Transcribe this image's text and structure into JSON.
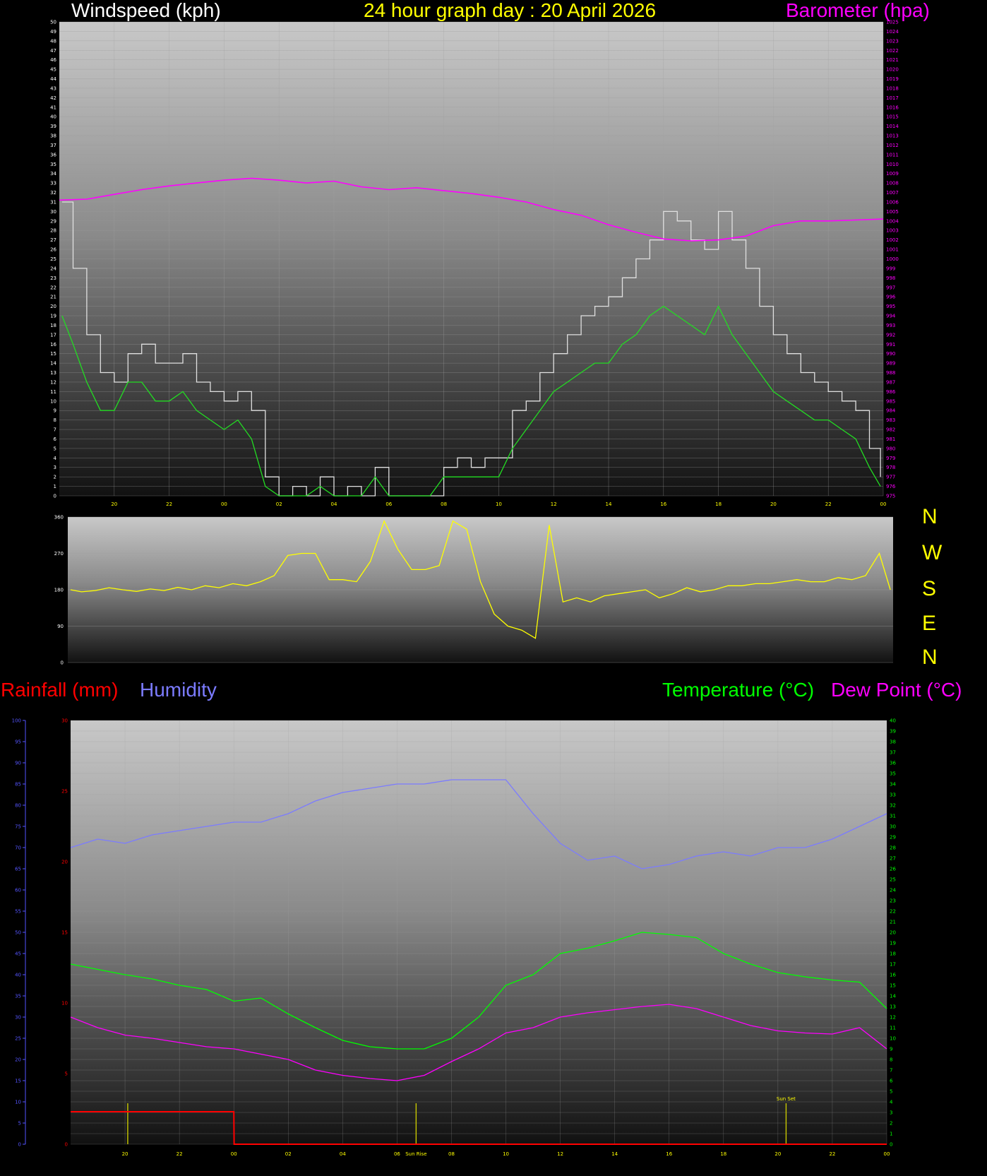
{
  "header": {
    "windspeed_label": "Windspeed (kph)",
    "title": "24 hour graph day : 20 April 2026",
    "barometer_label": "Barometer (hpa)"
  },
  "colors": {
    "windspeed": "#ffffff",
    "title": "#ffff00",
    "barometer": "#ff00ff",
    "gust": "#e0e0e0",
    "avgwind": "#22dd22",
    "direction": "#ffff00",
    "rainfall": "#ff0000",
    "humidity": "#7b7bff",
    "temperature": "#00ff00",
    "dewpoint": "#ff00ff",
    "sun": "#c8c800"
  },
  "direction_labels": [
    "N",
    "W",
    "S",
    "E",
    "N"
  ],
  "lower_header": {
    "rainfall_label": "Rainfall (mm)",
    "humidity_label": "Humidity",
    "temperature_label": "Temperature (°C)",
    "dewpoint_label": "Dew Point (°C)"
  },
  "annotations": {
    "sun_rise": "Sun Rise",
    "sun_set": "Sun Set"
  },
  "chart_data": [
    {
      "type": "line",
      "name": "wind-and-barometer",
      "x_unit": "hour",
      "x_range": [
        18,
        48
      ],
      "x_ticks": [
        "20",
        "22",
        "00",
        "02",
        "04",
        "06",
        "08",
        "10",
        "12",
        "14",
        "16",
        "18",
        "20",
        "22",
        "00"
      ],
      "y_left": {
        "label": "Windspeed (kph)",
        "range": [
          0,
          50
        ]
      },
      "y_right": {
        "label": "Barometer (hpa)",
        "range": [
          975,
          1025
        ]
      },
      "series": [
        {
          "name": "gust",
          "axis": "left",
          "x": [
            18.1,
            18.5,
            19,
            19.5,
            20,
            20.5,
            21,
            21.5,
            22,
            22.5,
            23,
            23.5,
            24,
            24.5,
            25,
            25.5,
            26,
            26.5,
            27,
            27.5,
            28,
            28.5,
            29,
            29.5,
            30,
            30.5,
            31,
            31.5,
            32,
            32.5,
            33,
            33.5,
            34,
            34.5,
            35,
            35.5,
            36,
            36.5,
            37,
            37.5,
            38,
            38.5,
            39,
            39.5,
            40,
            40.5,
            41,
            41.5,
            42,
            42.5,
            43,
            43.5,
            44,
            44.5,
            45,
            45.5,
            46,
            46.5,
            47,
            47.5,
            47.9
          ],
          "y": [
            31,
            24,
            17,
            13,
            12,
            15,
            16,
            14,
            14,
            15,
            12,
            11,
            10,
            11,
            9,
            2,
            0,
            1,
            0,
            2,
            0,
            1,
            0,
            3,
            0,
            0,
            0,
            0,
            3,
            4,
            3,
            4,
            4,
            9,
            10,
            13,
            15,
            17,
            19,
            20,
            21,
            23,
            25,
            27,
            30,
            29,
            27,
            26,
            30,
            27,
            24,
            20,
            17,
            15,
            13,
            12,
            11,
            10,
            9,
            5,
            2
          ]
        },
        {
          "name": "average",
          "axis": "left",
          "x": [
            18.1,
            18.5,
            19,
            19.5,
            20,
            20.5,
            21,
            21.5,
            22,
            22.5,
            23,
            23.5,
            24,
            24.5,
            25,
            25.5,
            26,
            26.5,
            27,
            27.5,
            28,
            28.5,
            29,
            29.5,
            30,
            30.5,
            31,
            31.5,
            32,
            32.5,
            33,
            33.5,
            34,
            34.5,
            35,
            35.5,
            36,
            36.5,
            37,
            37.5,
            38,
            38.5,
            39,
            39.5,
            40,
            40.5,
            41,
            41.5,
            42,
            42.5,
            43,
            43.5,
            44,
            44.5,
            45,
            45.5,
            46,
            46.5,
            47,
            47.5,
            47.9
          ],
          "y": [
            19,
            16,
            12,
            9,
            9,
            12,
            12,
            10,
            10,
            11,
            9,
            8,
            7,
            8,
            6,
            1,
            0,
            0,
            0,
            1,
            0,
            0,
            0,
            2,
            0,
            0,
            0,
            0,
            2,
            2,
            2,
            2,
            2,
            5,
            7,
            9,
            11,
            12,
            13,
            14,
            14,
            16,
            17,
            19,
            20,
            19,
            18,
            17,
            20,
            17,
            15,
            13,
            11,
            10,
            9,
            8,
            8,
            7,
            6,
            3,
            1
          ]
        },
        {
          "name": "barometer",
          "axis": "right",
          "x": [
            18,
            19,
            20,
            21,
            22,
            23,
            24,
            25,
            26,
            27,
            28,
            29,
            30,
            31,
            32,
            33,
            34,
            35,
            36,
            37,
            38,
            39,
            40,
            41,
            42,
            43,
            44,
            45,
            46,
            47,
            48
          ],
          "y": [
            1006.2,
            1006.3,
            1006.8,
            1007.3,
            1007.7,
            1008.0,
            1008.3,
            1008.5,
            1008.3,
            1008.0,
            1008.2,
            1007.6,
            1007.3,
            1007.5,
            1007.2,
            1006.9,
            1006.5,
            1006.0,
            1005.2,
            1004.6,
            1003.6,
            1002.8,
            1002.1,
            1001.9,
            1002.0,
            1002.4,
            1003.5,
            1004.0,
            1004.0,
            1004.1,
            1004.2
          ]
        }
      ]
    },
    {
      "type": "line",
      "name": "wind-direction",
      "x_range": [
        18,
        48
      ],
      "y_range": [
        0,
        360
      ],
      "y_ticks": [
        "0",
        "90",
        "180",
        "270",
        "360"
      ],
      "series": [
        {
          "name": "direction",
          "x": [
            18.1,
            18.5,
            19,
            19.5,
            20,
            20.5,
            21,
            21.5,
            22,
            22.5,
            23,
            23.5,
            24,
            24.5,
            25,
            25.5,
            26,
            26.5,
            27,
            27.5,
            28,
            28.5,
            29,
            29.5,
            30,
            30.5,
            31,
            31.5,
            32,
            32.5,
            33,
            33.5,
            34,
            34.5,
            35,
            35.5,
            36,
            36.5,
            37,
            37.5,
            38,
            38.5,
            39,
            39.5,
            40,
            40.5,
            41,
            41.5,
            42,
            42.5,
            43,
            43.5,
            44,
            44.5,
            45,
            45.5,
            46,
            46.5,
            47,
            47.5,
            47.9
          ],
          "y": [
            180,
            175,
            178,
            185,
            180,
            176,
            182,
            178,
            186,
            180,
            190,
            185,
            195,
            190,
            200,
            215,
            265,
            270,
            270,
            205,
            205,
            200,
            250,
            350,
            280,
            230,
            230,
            240,
            350,
            330,
            200,
            120,
            90,
            80,
            60,
            340,
            150,
            160,
            150,
            165,
            170,
            175,
            180,
            160,
            170,
            185,
            175,
            180,
            190,
            190,
            195,
            195,
            200,
            205,
            200,
            200,
            210,
            205,
            215,
            270,
            180
          ]
        }
      ]
    },
    {
      "type": "line",
      "name": "temperature-humidity-rain",
      "x_range": [
        18,
        48
      ],
      "x_ticks": [
        "20",
        "22",
        "00",
        "02",
        "04",
        "06",
        "08",
        "10",
        "12",
        "14",
        "16",
        "18",
        "20",
        "22",
        "00"
      ],
      "y_humidity": {
        "range": [
          0,
          100
        ]
      },
      "y_rainfall": {
        "range": [
          0,
          30
        ]
      },
      "y_temperature": {
        "range": [
          0,
          40
        ]
      },
      "series": [
        {
          "name": "humidity",
          "axis": "humidity",
          "x": [
            18,
            19,
            20,
            21,
            22,
            23,
            24,
            25,
            26,
            27,
            28,
            29,
            30,
            31,
            32,
            33,
            34,
            35,
            36,
            37,
            38,
            39,
            40,
            41,
            42,
            43,
            44,
            45,
            46,
            47,
            48
          ],
          "y": [
            70,
            72,
            71,
            73,
            74,
            75,
            76,
            76,
            78,
            81,
            83,
            84,
            85,
            85,
            86,
            86,
            86,
            78,
            71,
            67,
            68,
            65,
            66,
            68,
            69,
            68,
            70,
            70,
            72,
            75,
            78
          ]
        },
        {
          "name": "temperature",
          "axis": "temperature",
          "x": [
            18,
            19,
            20,
            21,
            22,
            23,
            24,
            25,
            26,
            27,
            28,
            29,
            30,
            31,
            32,
            33,
            34,
            35,
            36,
            37,
            38,
            39,
            40,
            41,
            42,
            43,
            44,
            45,
            46,
            47,
            48
          ],
          "y": [
            17,
            16.5,
            16,
            15.6,
            15,
            14.6,
            13.5,
            13.8,
            12.3,
            11,
            9.8,
            9.2,
            9.0,
            9.0,
            10,
            12,
            15,
            16,
            18,
            18.5,
            19.2,
            20,
            19.8,
            19.5,
            18,
            17,
            16.2,
            15.8,
            15.5,
            15.3,
            12.8
          ]
        },
        {
          "name": "dewpoint",
          "axis": "temperature",
          "x": [
            18,
            19,
            20,
            21,
            22,
            23,
            24,
            25,
            26,
            27,
            28,
            29,
            30,
            31,
            32,
            33,
            34,
            35,
            36,
            37,
            38,
            39,
            40,
            41,
            42,
            43,
            44,
            45,
            46,
            47,
            48
          ],
          "y": [
            12,
            11,
            10.3,
            10,
            9.6,
            9.2,
            9.0,
            8.5,
            8.0,
            7.0,
            6.5,
            6.2,
            6.0,
            6.5,
            7.8,
            9.0,
            10.5,
            11,
            12,
            12.4,
            12.7,
            13,
            13.2,
            12.8,
            12.0,
            11.2,
            10.7,
            10.5,
            10.4,
            11,
            9
          ]
        },
        {
          "name": "rainfall",
          "axis": "rainfall",
          "x": [
            18,
            24,
            24.01,
            48
          ],
          "y": [
            2.3,
            2.3,
            0,
            0
          ]
        }
      ]
    }
  ]
}
